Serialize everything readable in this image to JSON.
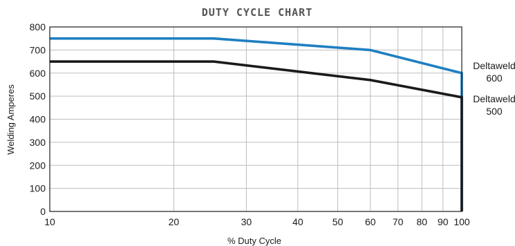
{
  "chart_data": {
    "type": "line",
    "title": "DUTY CYCLE CHART",
    "xlabel": "% Duty Cycle",
    "ylabel": "Welding Amperes",
    "xscale": "log",
    "xlim": [
      10,
      100
    ],
    "ylim": [
      0,
      800
    ],
    "xticks": [
      10,
      20,
      30,
      40,
      50,
      60,
      70,
      80,
      90,
      100
    ],
    "yticks": [
      0,
      100,
      200,
      300,
      400,
      500,
      600,
      700,
      800
    ],
    "grid": true,
    "series": [
      {
        "name": "Deltaweld 600",
        "name_lines": [
          "Deltaweld",
          "600"
        ],
        "color": "#1f7fc1",
        "x": [
          10,
          25,
          60,
          100
        ],
        "y": [
          750,
          750,
          700,
          600
        ]
      },
      {
        "name": "Deltaweld 500",
        "name_lines": [
          "Deltaweld",
          "500"
        ],
        "color": "#1a1a1a",
        "x": [
          10,
          25,
          60,
          100
        ],
        "y": [
          650,
          650,
          570,
          495
        ]
      }
    ]
  }
}
